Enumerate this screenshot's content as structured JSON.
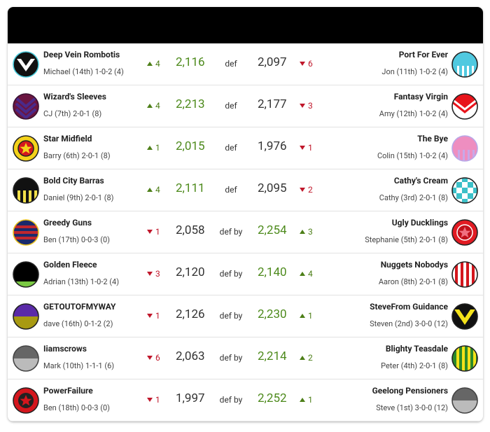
{
  "matches": [
    {
      "home": {
        "name": "Deep Vein Rombotis",
        "detail": "Michael (14th) 1-0-2 (4)",
        "move": "4",
        "score": "2,116"
      },
      "result": "def",
      "away": {
        "name": "Port For Ever",
        "detail": "Jon (11th) 1-0-2 (4)",
        "move": "6",
        "score": "2,097"
      },
      "home_trend": "up"
    },
    {
      "home": {
        "name": "Wizard's Sleeves",
        "detail": "CJ (7th) 2-0-1 (8)",
        "move": "4",
        "score": "2,213"
      },
      "result": "def",
      "away": {
        "name": "Fantasy Virgin",
        "detail": "Amy (12th) 1-0-2 (4)",
        "move": "3",
        "score": "2,177"
      },
      "home_trend": "up"
    },
    {
      "home": {
        "name": "Star Midfield",
        "detail": "Barry (6th) 2-0-1 (8)",
        "move": "1",
        "score": "2,015"
      },
      "result": "def",
      "away": {
        "name": "The Bye",
        "detail": "Colin (15th) 1-0-2 (4)",
        "move": "1",
        "score": "1,976"
      },
      "home_trend": "up"
    },
    {
      "home": {
        "name": "Bold City Barras",
        "detail": "Daniel (9th) 2-0-1 (8)",
        "move": "4",
        "score": "2,111"
      },
      "result": "def",
      "away": {
        "name": "Cathy's Cream",
        "detail": "Cathy (3rd) 2-0-1 (8)",
        "move": "2",
        "score": "2,095"
      },
      "home_trend": "up"
    },
    {
      "home": {
        "name": "Greedy Guns",
        "detail": "Ben (17th) 0-0-3 (0)",
        "move": "1",
        "score": "2,058"
      },
      "result": "def by",
      "away": {
        "name": "Ugly Ducklings",
        "detail": "Stephanie (5th) 2-0-1 (8)",
        "move": "3",
        "score": "2,254"
      },
      "home_trend": "down"
    },
    {
      "home": {
        "name": "Golden Fleece",
        "detail": "Adrian (13th) 1-0-2 (4)",
        "move": "3",
        "score": "2,120"
      },
      "result": "def by",
      "away": {
        "name": "Nuggets Nobodys",
        "detail": "Aaron (8th) 2-0-1 (8)",
        "move": "4",
        "score": "2,140"
      },
      "home_trend": "down"
    },
    {
      "home": {
        "name": "GETOUTOFMYWAY",
        "detail": "dave (16th) 0-1-2 (2)",
        "move": "1",
        "score": "2,126"
      },
      "result": "def by",
      "away": {
        "name": "SteveFrom Guidance",
        "detail": "Steven (2nd) 3-0-0 (12)",
        "move": "1",
        "score": "2,230"
      },
      "home_trend": "down"
    },
    {
      "home": {
        "name": "Iiamscrows",
        "detail": "Mark (10th) 1-1-1 (6)",
        "move": "6",
        "score": "2,063"
      },
      "result": "def by",
      "away": {
        "name": "Blighty Teasdale",
        "detail": "Peter (4th) 2-0-1 (8)",
        "move": "2",
        "score": "2,214"
      },
      "home_trend": "down"
    },
    {
      "home": {
        "name": "PowerFailure",
        "detail": "Ben (18th) 0-0-3 (0)",
        "move": "1",
        "score": "1,997"
      },
      "result": "def by",
      "away": {
        "name": "Geelong Pensioners",
        "detail": "Steve (1st) 3-0-0 (12)",
        "move": "1",
        "score": "2,252"
      },
      "home_trend": "down"
    }
  ]
}
